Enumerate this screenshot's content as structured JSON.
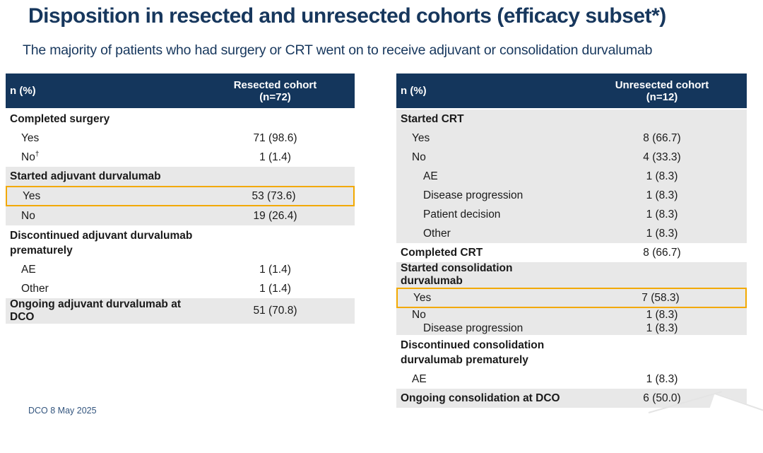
{
  "slide": {
    "title": "Disposition in resected and unresected cohorts (efficacy subset*)",
    "subtitle": "The majority of patients who had surgery or CRT went on to receive adjuvant or consolidation durvalumab",
    "footer": "DCO 8 May 2025"
  },
  "colors": {
    "header_navy": "#14365C",
    "title_navy": "#17375D",
    "band_gray": "#E8E8E8",
    "highlight_orange": "#F2A900"
  },
  "resected_table": {
    "head": {
      "col1": "n (%)",
      "col2_line1": "Resected cohort",
      "col2_line2": "(n=72)"
    },
    "rows": [
      {
        "label": "Completed surgery",
        "value": ""
      },
      {
        "label": "Yes",
        "value": "71 (98.6)"
      },
      {
        "label": "No",
        "sup": "†",
        "value": "1 (1.4)"
      },
      {
        "label": "Started adjuvant durvalumab",
        "value": ""
      },
      {
        "label": "Yes",
        "value": "53 (73.6)"
      },
      {
        "label": "No",
        "value": "19 (26.4)"
      },
      {
        "label": "Discontinued adjuvant durvalumab prematurely",
        "value": ""
      },
      {
        "label": "AE",
        "value": "1 (1.4)"
      },
      {
        "label": "Other",
        "value": "1 (1.4)"
      },
      {
        "label": "Ongoing adjuvant durvalumab at DCO",
        "value": "51 (70.8)"
      }
    ]
  },
  "unresected_table": {
    "head": {
      "col1": "n (%)",
      "col2_line1": "Unresected cohort",
      "col2_line2": "(n=12)"
    },
    "rows": [
      {
        "label": "Started CRT",
        "value": ""
      },
      {
        "label": "Yes",
        "value": "8 (66.7)"
      },
      {
        "label": "No",
        "value": "4 (33.3)"
      },
      {
        "label": "AE",
        "value": "1 (8.3)"
      },
      {
        "label": "Disease progression",
        "value": "1 (8.3)"
      },
      {
        "label": "Patient decision",
        "value": "1 (8.3)"
      },
      {
        "label": "Other",
        "value": "1 (8.3)"
      },
      {
        "label": "Completed CRT",
        "value": "8 (66.7)"
      },
      {
        "label": "Started consolidation durvalumab",
        "value": ""
      },
      {
        "label": "Yes",
        "value": "7 (58.3)"
      },
      {
        "label": "No",
        "value": "1 (8.3)"
      },
      {
        "label": "Disease progression",
        "value": "1 (8.3)"
      },
      {
        "label": "Discontinued consolidation durvalumab prematurely",
        "value": ""
      },
      {
        "label": "AE",
        "value": "1 (8.3)"
      },
      {
        "label": "Ongoing consolidation at DCO",
        "value": "6 (50.0)"
      }
    ]
  }
}
